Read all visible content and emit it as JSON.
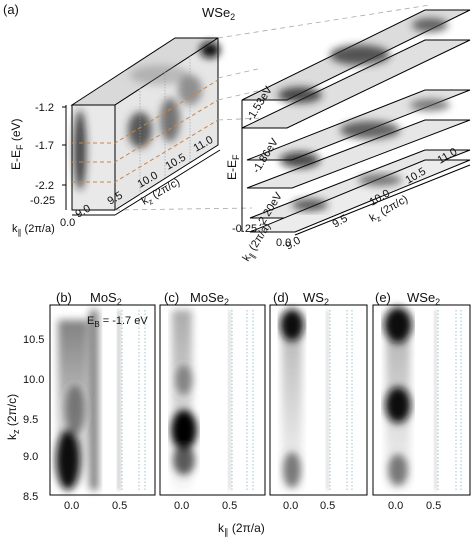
{
  "panel_a": {
    "label": "(a)",
    "material": "WSe",
    "material_sub": "2",
    "energy_axis_label": "E-E",
    "energy_axis_sub": "F",
    "energy_axis_unit": " (eV)",
    "energy_ticks": [
      "-1.2",
      "-1.7",
      "-2.2"
    ],
    "kpar_ticks": [
      "-0.25",
      "0.0"
    ],
    "kpar_label": "k",
    "kpar_sub": "∥",
    "kpar_unit": " (2π/a)",
    "kz_ticks": [
      "9.0",
      "9.5",
      "10.0",
      "10.5",
      "11.0"
    ],
    "kz_label": "k",
    "kz_sub": "z",
    "kz_unit": " (2π/c)",
    "slices": [
      "-1.53eV",
      "-1.86eV",
      "-2.20eV"
    ]
  },
  "panels_bottom": [
    {
      "label": "(b)",
      "material": "MoS",
      "sub": "2"
    },
    {
      "label": "(c)",
      "material": "MoSe",
      "sub": "2"
    },
    {
      "label": "(d)",
      "material": "WS",
      "sub": "2"
    },
    {
      "label": "(e)",
      "material": "WSe",
      "sub": "2"
    }
  ],
  "eb_label": "E",
  "eb_sub": "B",
  "eb_value": " = -1.7 eV",
  "y_axis": {
    "label": "k",
    "sub": "z",
    "unit": " (2π/c)",
    "ticks": [
      "10.5",
      "10.0",
      "9.5",
      "9.0",
      "8.5"
    ]
  },
  "x_axis": {
    "label": "k",
    "sub": "∥",
    "unit": " (2π/a)",
    "ticks": [
      "0.0",
      "0.5"
    ]
  },
  "colors": {
    "frame": "#000000",
    "guide_orange": "#c8864a",
    "guide_grey": "#a8a8a8",
    "dotted_cyan": "#7fb7c0"
  }
}
